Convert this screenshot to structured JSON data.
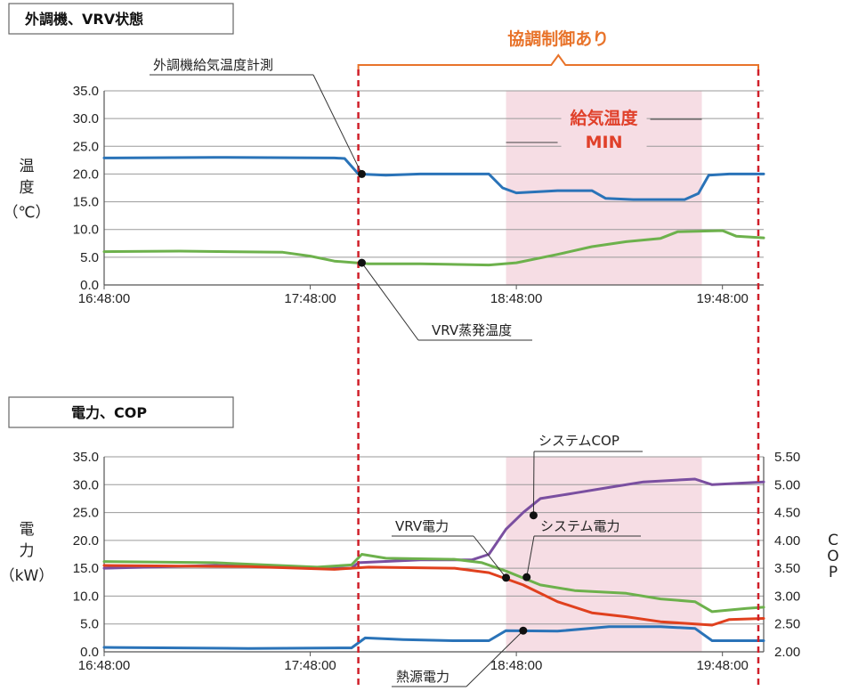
{
  "chart_data": [
    {
      "type": "line",
      "title": "外調機、VRV状態",
      "ylabel": "温度（℃）",
      "ylabel_lines": [
        "温",
        "度",
        "（℃）"
      ],
      "ylim": [
        0,
        35
      ],
      "yticks": [
        "35.0",
        "30.0",
        "25.0",
        "20.0",
        "15.0",
        "10.0",
        "5.0",
        "0.0"
      ],
      "xlim": [
        "16:48:00",
        "20:00:00"
      ],
      "xticks": [
        "16:48:00",
        "17:48:00",
        "18:48:00",
        "19:48:00"
      ],
      "series": [
        {
          "name": "外調機給気温度計測",
          "color": "#2a73b8",
          "points": [
            [
              "16:48",
              22.9
            ],
            [
              "17:20",
              23.0
            ],
            [
              "17:55",
              22.9
            ],
            [
              "17:58",
              22.8
            ],
            [
              "18:02",
              20.0
            ],
            [
              "18:10",
              19.8
            ],
            [
              "18:20",
              20.0
            ],
            [
              "18:40",
              20.0
            ],
            [
              "18:44",
              17.5
            ],
            [
              "18:48",
              16.6
            ],
            [
              "19:00",
              17.0
            ],
            [
              "19:10",
              17.0
            ],
            [
              "19:14",
              15.6
            ],
            [
              "19:22",
              15.4
            ],
            [
              "19:37",
              15.4
            ],
            [
              "19:41",
              16.5
            ],
            [
              "19:44",
              19.8
            ],
            [
              "19:50",
              20.0
            ],
            [
              "20:00",
              20.0
            ]
          ]
        },
        {
          "name": "VRV蒸発温度",
          "color": "#6db14c",
          "points": [
            [
              "16:48",
              6.0
            ],
            [
              "17:10",
              6.1
            ],
            [
              "17:40",
              5.9
            ],
            [
              "17:48",
              5.2
            ],
            [
              "17:55",
              4.3
            ],
            [
              "18:05",
              3.8
            ],
            [
              "18:20",
              3.8
            ],
            [
              "18:40",
              3.6
            ],
            [
              "18:48",
              4.0
            ],
            [
              "19:00",
              5.5
            ],
            [
              "19:10",
              6.9
            ],
            [
              "19:20",
              7.8
            ],
            [
              "19:30",
              8.4
            ],
            [
              "19:35",
              9.6
            ],
            [
              "19:48",
              9.8
            ],
            [
              "19:52",
              8.8
            ],
            [
              "20:00",
              8.5
            ]
          ]
        }
      ],
      "annotations": [
        {
          "text": "外調機給気温度計測",
          "at": [
            "18:03",
            20.0
          ]
        },
        {
          "text": "VRV蒸発温度",
          "at": [
            "18:03",
            4.0
          ]
        },
        {
          "text_lines": [
            "給気温度",
            "MIN"
          ]
        }
      ]
    },
    {
      "type": "line",
      "title": "電力、COP",
      "ylabel": "電力（kW）",
      "ylabel_lines": [
        "電",
        "力",
        "（kW）"
      ],
      "ylim": [
        0,
        35
      ],
      "yticks": [
        "35.0",
        "30.0",
        "25.0",
        "20.0",
        "15.0",
        "10.0",
        "5.0",
        "0.0"
      ],
      "y2label": "COP",
      "y2label_letters": [
        "C",
        "O",
        "P"
      ],
      "y2lim": [
        2.0,
        5.5
      ],
      "y2ticks": [
        "5.50",
        "5.00",
        "4.50",
        "4.00",
        "3.50",
        "3.00",
        "2.50",
        "2.00"
      ],
      "xlim": [
        "16:48:00",
        "20:00:00"
      ],
      "xticks": [
        "16:48:00",
        "17:48:00",
        "18:48:00",
        "19:48:00"
      ],
      "series": [
        {
          "name": "システムCOP",
          "color": "#7a4fa0",
          "axis": "right",
          "points": [
            [
              "16:48",
              3.5
            ],
            [
              "17:20",
              3.55
            ],
            [
              "17:55",
              3.5
            ],
            [
              "18:00",
              3.5
            ],
            [
              "18:02",
              3.6
            ],
            [
              "18:20",
              3.65
            ],
            [
              "18:35",
              3.65
            ],
            [
              "18:40",
              3.75
            ],
            [
              "18:45",
              4.2
            ],
            [
              "18:50",
              4.5
            ],
            [
              "18:55",
              4.75
            ],
            [
              "19:05",
              4.85
            ],
            [
              "19:15",
              4.95
            ],
            [
              "19:25",
              5.05
            ],
            [
              "19:40",
              5.1
            ],
            [
              "19:45",
              5.0
            ],
            [
              "20:00",
              5.05
            ]
          ]
        },
        {
          "name": "システム電力",
          "color": "#6db14c",
          "axis": "left",
          "points": [
            [
              "16:48",
              16.2
            ],
            [
              "17:20",
              16.0
            ],
            [
              "17:50",
              15.2
            ],
            [
              "18:00",
              15.6
            ],
            [
              "18:03",
              17.5
            ],
            [
              "18:10",
              16.8
            ],
            [
              "18:30",
              16.6
            ],
            [
              "18:38",
              16.0
            ],
            [
              "18:45",
              14.5
            ],
            [
              "18:55",
              12.0
            ],
            [
              "19:05",
              11.0
            ],
            [
              "19:20",
              10.5
            ],
            [
              "19:30",
              9.5
            ],
            [
              "19:40",
              9.0
            ],
            [
              "19:45",
              7.2
            ],
            [
              "19:55",
              7.8
            ],
            [
              "20:00",
              8.0
            ]
          ]
        },
        {
          "name": "VRV電力",
          "color": "#e0401e",
          "axis": "left",
          "points": [
            [
              "16:48",
              15.5
            ],
            [
              "17:30",
              15.3
            ],
            [
              "17:55",
              14.8
            ],
            [
              "18:05",
              15.2
            ],
            [
              "18:30",
              15.0
            ],
            [
              "18:40",
              14.2
            ],
            [
              "18:50",
              12.0
            ],
            [
              "19:00",
              9.0
            ],
            [
              "19:10",
              7.0
            ],
            [
              "19:20",
              6.3
            ],
            [
              "19:30",
              5.4
            ],
            [
              "19:45",
              4.8
            ],
            [
              "19:50",
              5.8
            ],
            [
              "20:00",
              6.0
            ]
          ]
        },
        {
          "name": "熱源電力",
          "color": "#2a73b8",
          "axis": "left",
          "points": [
            [
              "16:48",
              0.8
            ],
            [
              "17:30",
              0.6
            ],
            [
              "18:00",
              0.7
            ],
            [
              "18:04",
              2.5
            ],
            [
              "18:15",
              2.2
            ],
            [
              "18:30",
              2.0
            ],
            [
              "18:40",
              2.0
            ],
            [
              "18:45",
              3.8
            ],
            [
              "19:00",
              3.7
            ],
            [
              "19:15",
              4.5
            ],
            [
              "19:30",
              4.5
            ],
            [
              "19:40",
              4.2
            ],
            [
              "19:45",
              2.0
            ],
            [
              "20:00",
              2.0
            ]
          ]
        }
      ],
      "annotations": [
        {
          "text": "システムCOP",
          "at": [
            "18:53",
            4.45
          ],
          "axis": "right"
        },
        {
          "text": "VRV電力",
          "at": [
            "18:45",
            13.3
          ]
        },
        {
          "text": "システム電力",
          "at": [
            "18:51",
            13.4
          ]
        },
        {
          "text": "熱源電力",
          "at": [
            "18:50",
            3.8
          ]
        }
      ]
    }
  ],
  "cooperative_control": {
    "label": "協調制御あり",
    "start": "18:02",
    "end": "20:00"
  },
  "highlight": {
    "start": "18:45",
    "end": "19:42",
    "color": "#f6dde4"
  }
}
